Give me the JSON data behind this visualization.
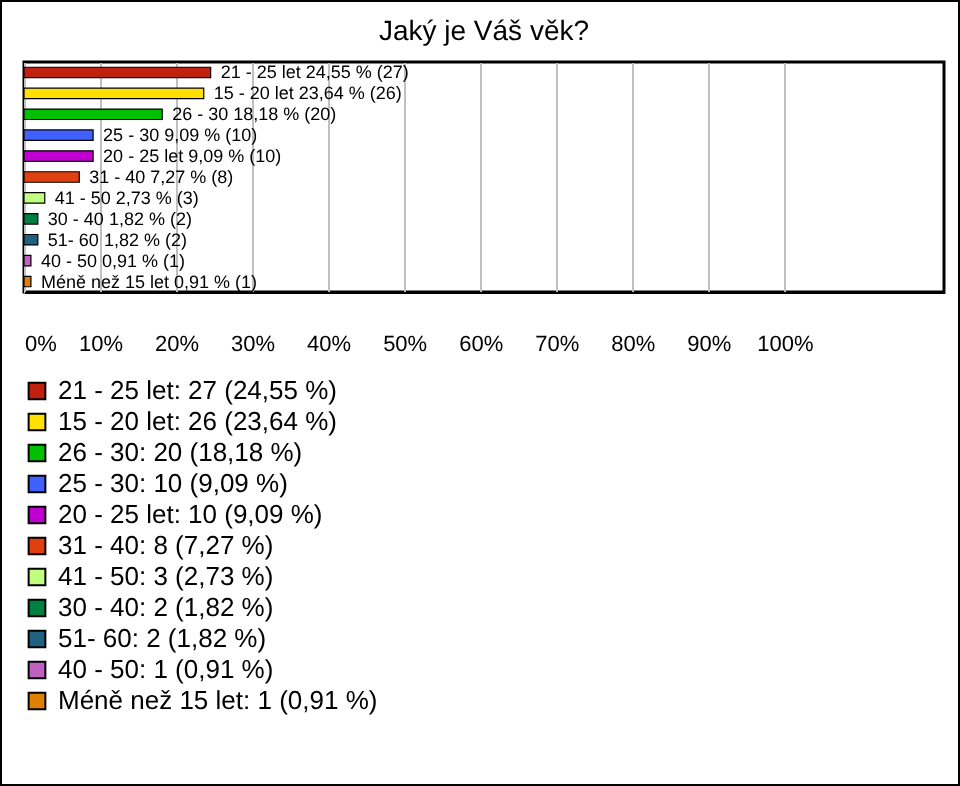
{
  "chart_data": {
    "type": "bar",
    "orientation": "horizontal",
    "title": "Jaký je Váš věk?",
    "categories": [
      null,
      null,
      null,
      null,
      null,
      null,
      null,
      null,
      null,
      null,
      null
    ],
    "series": [
      {
        "name": "21 - 25 let: 27 (24,55 %)",
        "color": "#c0200e",
        "values": [
          24.55,
          null,
          null,
          null,
          null,
          null,
          null,
          null,
          null,
          null,
          null
        ],
        "value_labels": [
          "21 - 25 let 24,55 % (27)",
          null,
          null,
          null,
          null,
          null,
          null,
          null,
          null,
          null,
          null
        ]
      },
      {
        "name": "15 - 20 let: 26 (23,64 %)",
        "color": "#ffe000",
        "values": [
          null,
          23.64,
          null,
          null,
          null,
          null,
          null,
          null,
          null,
          null,
          null
        ],
        "value_labels": [
          null,
          "15 - 20 let 23,64 % (26)",
          null,
          null,
          null,
          null,
          null,
          null,
          null,
          null,
          null
        ]
      },
      {
        "name": "26 - 30: 20 (18,18 %)",
        "color": "#00c000",
        "values": [
          null,
          null,
          18.18,
          null,
          null,
          null,
          null,
          null,
          null,
          null,
          null
        ],
        "value_labels": [
          null,
          null,
          "26 - 30 18,18 % (20)",
          null,
          null,
          null,
          null,
          null,
          null,
          null,
          null
        ]
      },
      {
        "name": "25 - 30: 10 (9,09 %)",
        "color": "#4060ff",
        "values": [
          null,
          null,
          null,
          9.09,
          null,
          null,
          null,
          null,
          null,
          null,
          null
        ],
        "value_labels": [
          null,
          null,
          null,
          "25 - 30 9,09 % (10)",
          null,
          null,
          null,
          null,
          null,
          null,
          null
        ]
      },
      {
        "name": "20 - 25 let: 10 (9,09 %)",
        "color": "#c000d0",
        "values": [
          null,
          null,
          null,
          null,
          9.09,
          null,
          null,
          null,
          null,
          null,
          null
        ],
        "value_labels": [
          null,
          null,
          null,
          null,
          "20 - 25 let 9,09 % (10)",
          null,
          null,
          null,
          null,
          null,
          null
        ]
      },
      {
        "name": "31 - 40: 8 (7,27 %)",
        "color": "#e04010",
        "values": [
          null,
          null,
          null,
          null,
          null,
          7.27,
          null,
          null,
          null,
          null,
          null
        ],
        "value_labels": [
          null,
          null,
          null,
          null,
          null,
          "31 - 40 7,27 % (8)",
          null,
          null,
          null,
          null,
          null
        ]
      },
      {
        "name": "41 - 50: 3 (2,73 %)",
        "color": "#c0ff80",
        "values": [
          null,
          null,
          null,
          null,
          null,
          null,
          2.73,
          null,
          null,
          null,
          null
        ],
        "value_labels": [
          null,
          null,
          null,
          null,
          null,
          null,
          "41 - 50 2,73 % (3)",
          null,
          null,
          null,
          null
        ]
      },
      {
        "name": "30 - 40: 2 (1,82 %)",
        "color": "#008040",
        "values": [
          null,
          null,
          null,
          null,
          null,
          null,
          null,
          1.82,
          null,
          null,
          null
        ],
        "value_labels": [
          null,
          null,
          null,
          null,
          null,
          null,
          null,
          "30 - 40 1,82 % (2)",
          null,
          null,
          null
        ]
      },
      {
        "name": "51- 60: 2 (1,82 %)",
        "color": "#206080",
        "values": [
          null,
          null,
          null,
          null,
          null,
          null,
          null,
          null,
          1.82,
          null,
          null
        ],
        "value_labels": [
          null,
          null,
          null,
          null,
          null,
          null,
          null,
          null,
          "51- 60 1,82 % (2)",
          null,
          null
        ]
      },
      {
        "name": "40 - 50: 1 (0,91 %)",
        "color": "#c060c0",
        "values": [
          null,
          null,
          null,
          null,
          null,
          null,
          null,
          null,
          null,
          0.91,
          null
        ],
        "value_labels": [
          null,
          null,
          null,
          null,
          null,
          null,
          null,
          null,
          null,
          "40 - 50 0,91 % (1)",
          null
        ]
      },
      {
        "name": "Méně než 15 let: 1 (0,91 %)",
        "color": "#e08000",
        "values": [
          null,
          null,
          null,
          null,
          null,
          null,
          null,
          null,
          null,
          null,
          0.91
        ],
        "value_labels": [
          null,
          null,
          null,
          null,
          null,
          null,
          null,
          null,
          null,
          null,
          "Méně než 15 let 0,91 % (1)"
        ]
      }
    ],
    "xlim": [
      0,
      121
    ],
    "xticks": [
      {
        "value": 0,
        "label": "0%"
      },
      {
        "value": 10,
        "label": "10%"
      },
      {
        "value": 20,
        "label": "20%"
      },
      {
        "value": 30,
        "label": "30%"
      },
      {
        "value": 40,
        "label": "40%"
      },
      {
        "value": 50,
        "label": "50%"
      },
      {
        "value": 60,
        "label": "60%"
      },
      {
        "value": 70,
        "label": "70%"
      },
      {
        "value": 80,
        "label": "80%"
      },
      {
        "value": 90,
        "label": "90%"
      },
      {
        "value": 100,
        "label": "100%"
      }
    ],
    "grid": "x",
    "legend": "bottom",
    "tick_labels": "x"
  }
}
